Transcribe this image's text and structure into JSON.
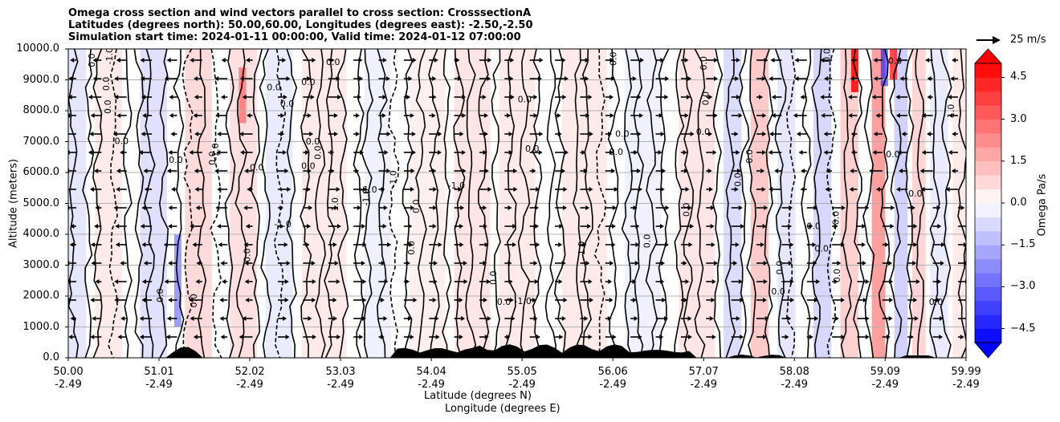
{
  "chart_data": {
    "type": "heatmap",
    "title_lines": [
      "Omega cross section and wind vectors parallel to cross section: CrosssectionA",
      "Latitudes (degrees north): 50.00,60.00, Longitudes (degrees east): -2.50,-2.50",
      "Simulation start time: 2024-01-11 00:00:00, Valid time: 2024-01-12 07:00:00"
    ],
    "ylabel": "Altitude (meters)",
    "xlabel_lines": [
      "Latitude (degrees N)",
      "Longitude (degrees E)"
    ],
    "y_ticks": [
      "0.0",
      "1000.0",
      "2000.0",
      "3000.0",
      "4000.0",
      "5000.0",
      "6000.0",
      "7000.0",
      "8000.0",
      "9000.0",
      "10000.0"
    ],
    "ylim": [
      0,
      10000
    ],
    "x_tick_lat": [
      "50.00",
      "51.01",
      "52.02",
      "53.03",
      "54.04",
      "55.05",
      "56.06",
      "57.07",
      "58.08",
      "59.09",
      "59.99"
    ],
    "x_tick_lon": [
      "-2.49",
      "-2.49",
      "-2.49",
      "-2.49",
      "-2.49",
      "-2.49",
      "-2.49",
      "-2.49",
      "-2.49",
      "-2.49",
      "-2.49"
    ],
    "xlim": [
      50.0,
      59.99
    ],
    "grid": "horizontal",
    "colorbar": {
      "label": "Omega Pa/s",
      "ticks": [
        "4.5",
        "3.0",
        "1.5",
        "0.0",
        "−1.5",
        "−3.0",
        "−4.5"
      ],
      "range": [
        -5.0,
        5.0
      ],
      "cmap": "bwr",
      "extend": "both"
    },
    "quiver_key": "25 m/s",
    "contour_labels": [
      "0.0",
      "1.0",
      "-1.0"
    ],
    "colors": {
      "positive": "#ff0000",
      "negative": "#0000ff",
      "neutral": "#ffffff",
      "contour": "#000000",
      "terrain": "#000000"
    }
  }
}
